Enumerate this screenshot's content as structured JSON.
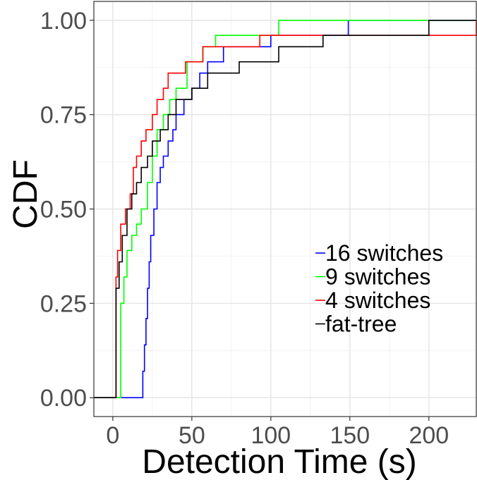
{
  "chart_data": {
    "type": "step",
    "xlabel": "Detection Time (s)",
    "ylabel": "CDF",
    "xlim": [
      -12,
      230
    ],
    "ylim": [
      -0.05,
      1.05
    ],
    "xticks": [
      0,
      50,
      100,
      150,
      200
    ],
    "xtick_labels": [
      "0",
      "50",
      "100",
      "150",
      "200"
    ],
    "yticks": [
      0,
      0.25,
      0.5,
      0.75,
      1.0
    ],
    "ytick_labels": [
      "0.00",
      "0.25",
      "0.50",
      "0.75",
      "1.00"
    ],
    "grid": true,
    "legend_position": "bottom-right",
    "series": [
      {
        "name": "16 switches",
        "color": "#0000ff",
        "x": [
          -12,
          18,
          19,
          20,
          21,
          22,
          23,
          24,
          26,
          28,
          30,
          32,
          35,
          38,
          40,
          45,
          50,
          55,
          60,
          70,
          100,
          149,
          230
        ],
        "y": [
          0,
          0,
          0.07,
          0.14,
          0.21,
          0.29,
          0.36,
          0.43,
          0.5,
          0.57,
          0.61,
          0.64,
          0.68,
          0.71,
          0.75,
          0.79,
          0.82,
          0.86,
          0.89,
          0.93,
          0.96,
          1.0,
          1.0
        ]
      },
      {
        "name": "9 switches",
        "color": "#00ff00",
        "x": [
          -12,
          4,
          5,
          7,
          9,
          12,
          15,
          18,
          22,
          25,
          28,
          32,
          36,
          40,
          47,
          57,
          65,
          105,
          230
        ],
        "y": [
          0,
          0,
          0.25,
          0.32,
          0.39,
          0.43,
          0.46,
          0.5,
          0.57,
          0.64,
          0.71,
          0.75,
          0.79,
          0.82,
          0.89,
          0.93,
          0.96,
          1.0,
          1.0
        ]
      },
      {
        "name": "4 switches",
        "color": "#ff0000",
        "x": [
          -12,
          1,
          2,
          3,
          5,
          8,
          11,
          13,
          15,
          18,
          21,
          25,
          28,
          32,
          35,
          46,
          57,
          93,
          230
        ],
        "y": [
          0,
          0,
          0.32,
          0.39,
          0.46,
          0.5,
          0.54,
          0.61,
          0.64,
          0.68,
          0.71,
          0.75,
          0.79,
          0.82,
          0.86,
          0.89,
          0.93,
          0.96,
          1.0
        ]
      },
      {
        "name": "fat-tree",
        "color": "#000000",
        "x": [
          -12,
          1,
          2,
          4,
          6,
          9,
          12,
          15,
          18,
          22,
          25,
          30,
          35,
          40,
          50,
          60,
          70,
          80,
          105,
          133,
          200,
          230
        ],
        "y": [
          0,
          0,
          0.29,
          0.36,
          0.43,
          0.5,
          0.54,
          0.57,
          0.61,
          0.64,
          0.68,
          0.71,
          0.75,
          0.79,
          0.82,
          0.86,
          0.86,
          0.89,
          0.93,
          0.96,
          1.0,
          1.0
        ]
      }
    ]
  }
}
